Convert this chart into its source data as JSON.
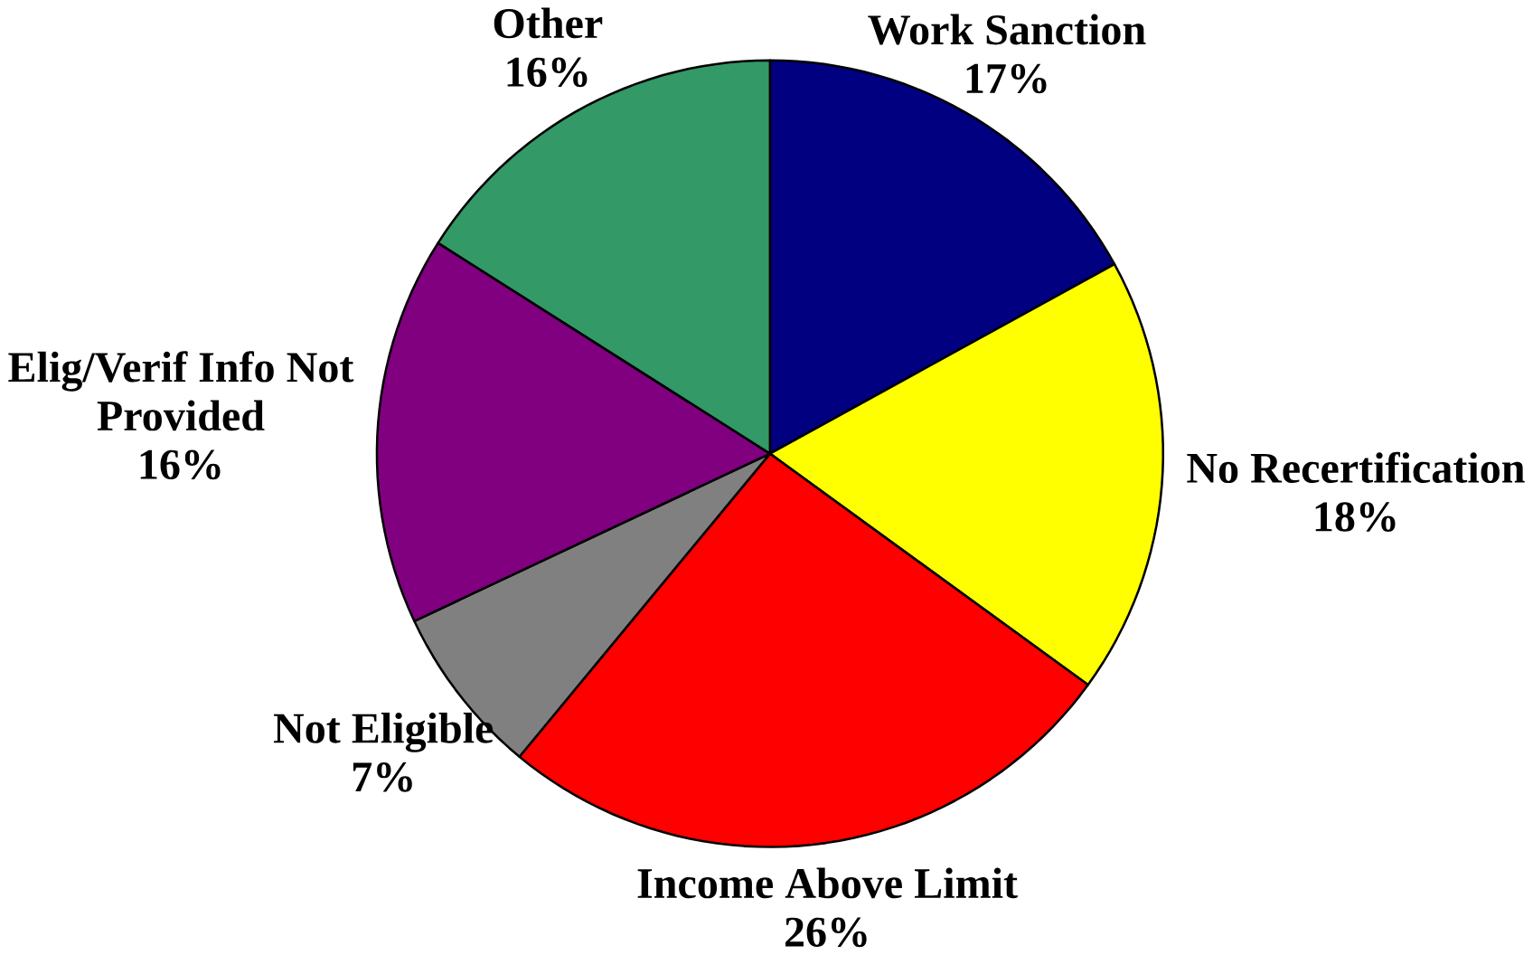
{
  "chart_data": {
    "type": "pie",
    "categories": [
      "Work Sanction",
      "No Recertification",
      "Income Above Limit",
      "Not Eligible",
      "Elig/Verif Info Not Provided",
      "Other"
    ],
    "values": [
      17,
      18,
      26,
      7,
      16,
      16
    ],
    "value_labels": [
      "17%",
      "18%",
      "26%",
      "7%",
      "16%",
      "16%"
    ],
    "colors": [
      "#000080",
      "#ffff00",
      "#ff0000",
      "#808080",
      "#800080",
      "#339966"
    ]
  }
}
